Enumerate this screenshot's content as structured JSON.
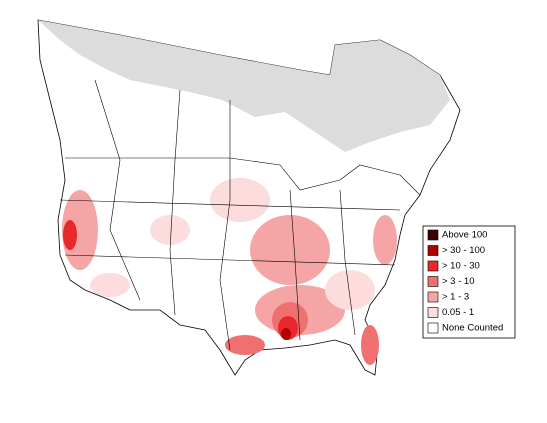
{
  "legend": {
    "items": [
      {
        "label": "Above 100",
        "color": "#3d0000"
      },
      {
        "label": "> 30 - 100",
        "color": "#b00000"
      },
      {
        "label": "> 10 - 30",
        "color": "#e8282a"
      },
      {
        "label": "> 3 - 10",
        "color": "#f07070"
      },
      {
        "label": "> 1 - 3",
        "color": "#f5a5a5"
      },
      {
        "label": "0.05 - 1",
        "color": "#fcdcdc"
      },
      {
        "label": "None Counted",
        "color": "#ffffff"
      }
    ]
  }
}
